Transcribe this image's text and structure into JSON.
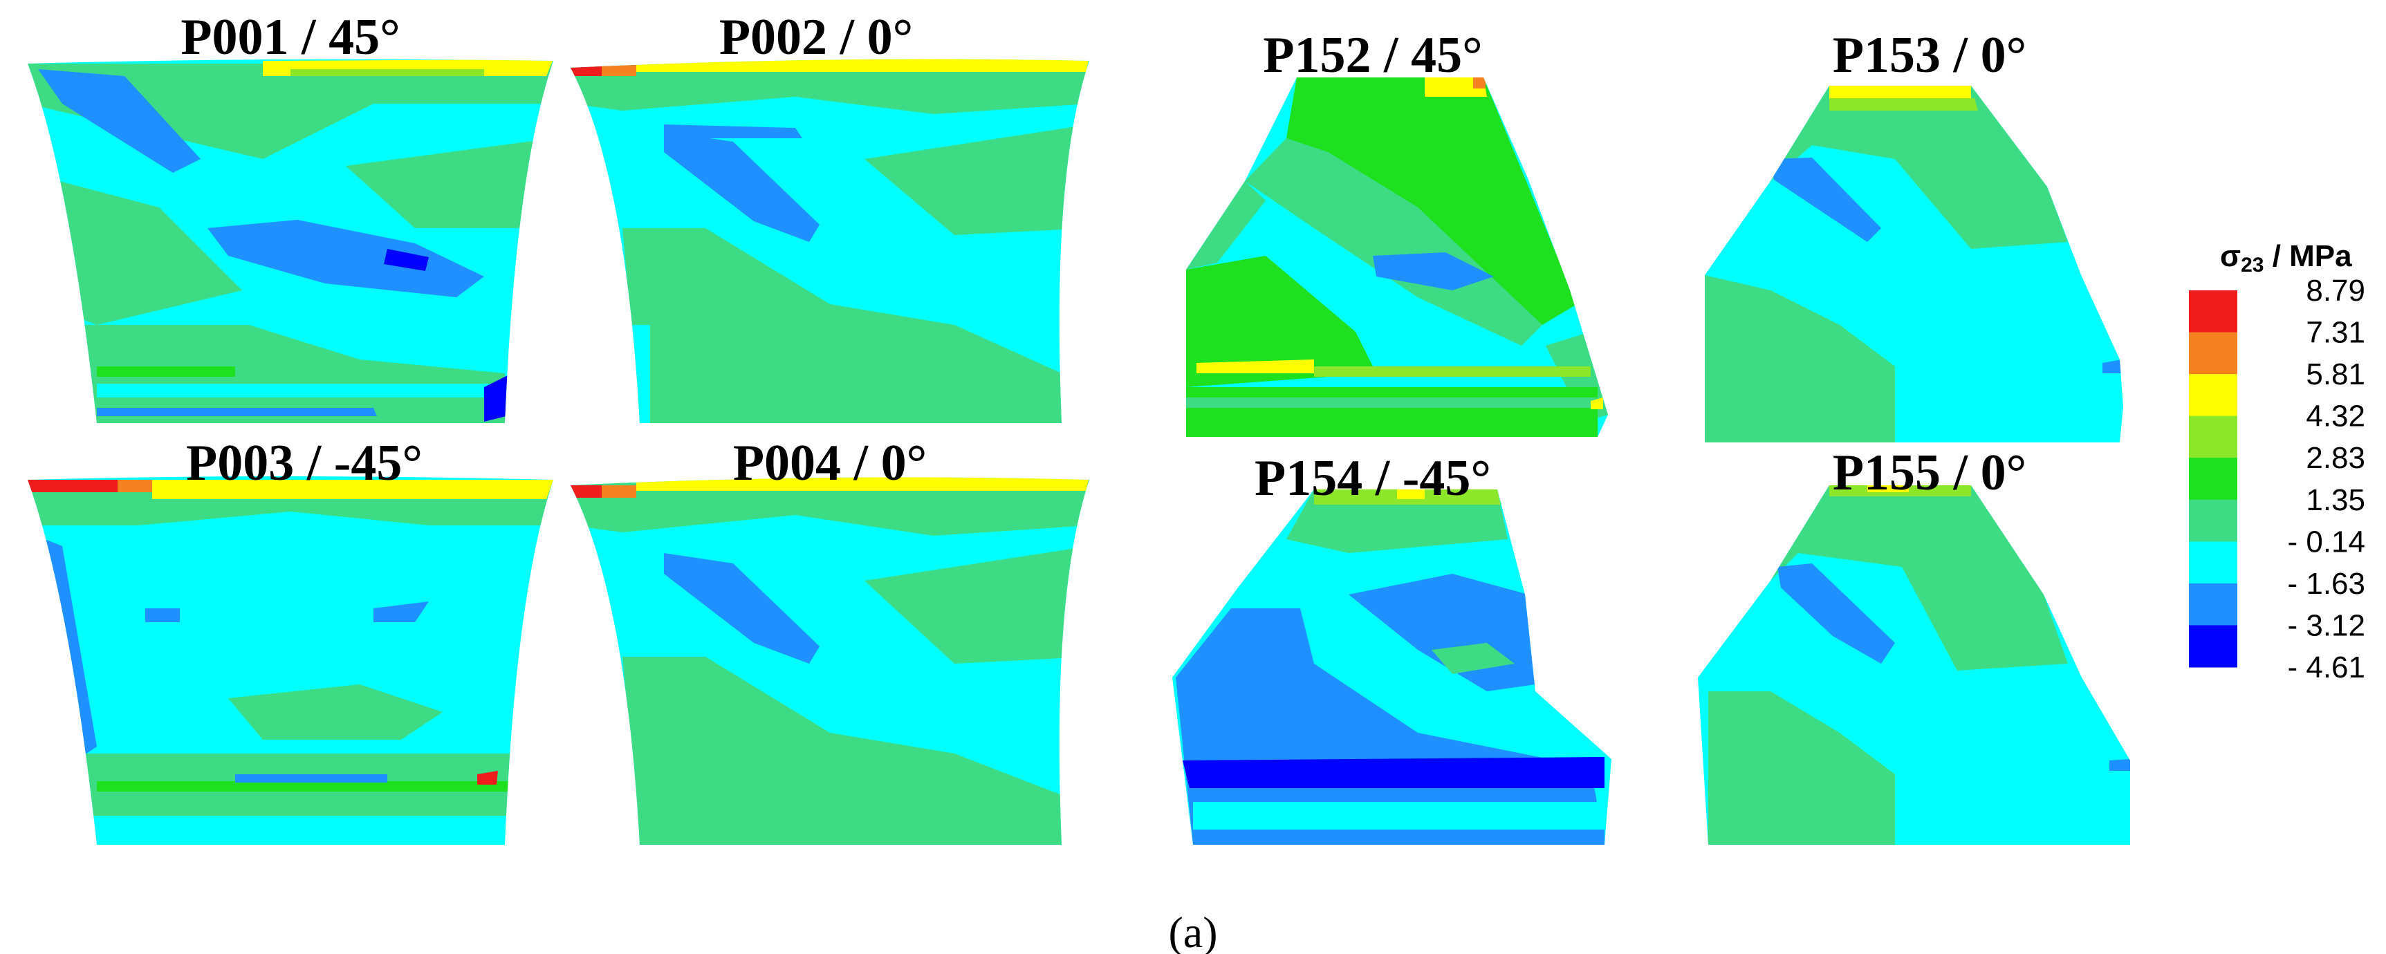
{
  "figure_label": "(a)",
  "legend": {
    "title": "σ23 / MPa",
    "title_symbol": "σ",
    "title_subscript": "23",
    "title_unit": " / MPa",
    "levels": [
      {
        "value": "8.79",
        "color": "#ee1c1c"
      },
      {
        "value": "7.31",
        "color": "#f58220"
      },
      {
        "value": "5.81",
        "color": "#ffff00"
      },
      {
        "value": "4.32",
        "color": "#8ce62a"
      },
      {
        "value": "2.83",
        "color": "#1ee01e"
      },
      {
        "value": "1.35",
        "color": "#3ddc84"
      },
      {
        "value": "- 0.14",
        "color": "#00ffff"
      },
      {
        "value": "- 1.63",
        "color": "#1e90ff"
      },
      {
        "value": "- 3.12",
        "color": "#0000ff"
      },
      {
        "value": "- 4.61",
        "color": ""
      }
    ]
  },
  "panels": [
    {
      "title": "P001 / 45°"
    },
    {
      "title": "P002 / 0°"
    },
    {
      "title": "P003 / -45°"
    },
    {
      "title": "P004 / 0°"
    },
    {
      "title": "P152 / 45°"
    },
    {
      "title": "P153 / 0°"
    },
    {
      "title": "P154 / -45°"
    },
    {
      "title": "P155 / 0°"
    }
  ]
}
